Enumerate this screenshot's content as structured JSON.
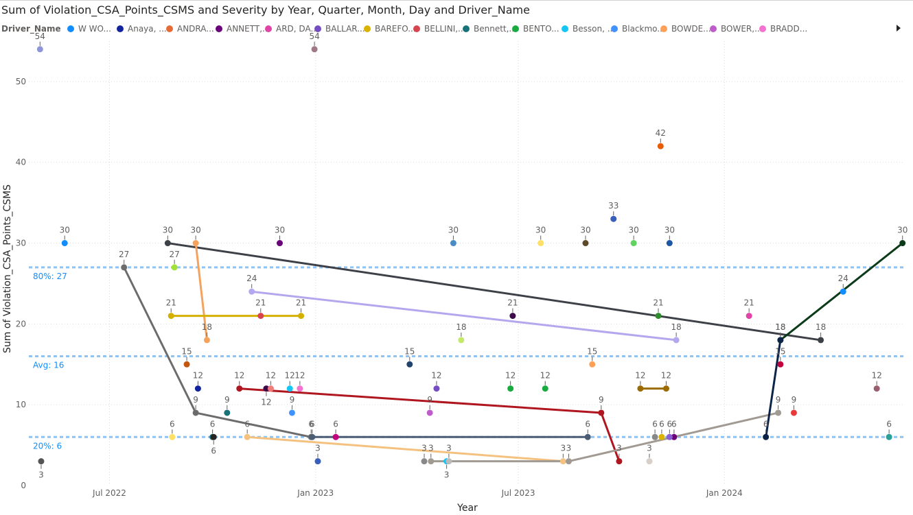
{
  "chart_data": {
    "type": "scatter",
    "title": "Sum of Violation_CSA_Points_CSMS and Severity by Year, Quarter, Month, Day and Driver_Name",
    "xlabel": "Year",
    "ylabel": "Sum of Violation_CSA_Points_CSMS",
    "x_range": [
      "2022-04-20",
      "2024-06-10"
    ],
    "ylim": [
      0,
      55
    ],
    "y_ticks": [
      0,
      10,
      20,
      30,
      40,
      50
    ],
    "x_ticks": [
      {
        "date": "2022-07-01",
        "label": "Jul 2022"
      },
      {
        "date": "2023-01-01",
        "label": "Jan 2023"
      },
      {
        "date": "2023-07-01",
        "label": "Jul 2023"
      },
      {
        "date": "2024-01-01",
        "label": "Jan 2024"
      }
    ],
    "grid": true,
    "legend": {
      "title": "Driver_Name",
      "placement": "top",
      "items": [
        {
          "name": "W WO...",
          "color": "#118dff"
        },
        {
          "name": "Anaya, ...",
          "color": "#12239e"
        },
        {
          "name": "ANDRA...",
          "color": "#e66c37"
        },
        {
          "name": "ANNETT,...",
          "color": "#6b007b"
        },
        {
          "name": "ARD, DA...",
          "color": "#e044a7"
        },
        {
          "name": "BALLAR...",
          "color": "#744ec2"
        },
        {
          "name": "BAREFO...",
          "color": "#d9b300"
        },
        {
          "name": "BELLINI,...",
          "color": "#d64550"
        },
        {
          "name": "Bennett,...",
          "color": "#197278"
        },
        {
          "name": "BENTO...",
          "color": "#1aab40"
        },
        {
          "name": "Besson, ...",
          "color": "#15c6f4"
        },
        {
          "name": "Blackmo...",
          "color": "#4092ff"
        },
        {
          "name": "BOWDE...",
          "color": "#ffa058"
        },
        {
          "name": "BOWER,...",
          "color": "#be5dc9"
        },
        {
          "name": "BRADD...",
          "color": "#f472d0"
        }
      ]
    },
    "reference_lines": [
      {
        "value": 27,
        "label": "80%: 27",
        "color": "#118dff"
      },
      {
        "value": 16,
        "label": "Avg: 16",
        "color": "#118dff"
      },
      {
        "value": 6,
        "label": "20%: 6",
        "color": "#118dff"
      }
    ],
    "series": [
      {
        "color": "#6c6c6c",
        "points": [
          {
            "x": "2022-07-14",
            "y": 27,
            "label": "27"
          },
          {
            "x": "2022-09-16",
            "y": 9,
            "label": "9"
          },
          {
            "x": "2022-12-28",
            "y": 6,
            "label": "6"
          }
        ]
      },
      {
        "color": "#3d4047",
        "points": [
          {
            "x": "2022-08-22",
            "y": 30,
            "label": "30"
          },
          {
            "x": "2024-03-27",
            "y": 18,
            "label": "18"
          }
        ]
      },
      {
        "color": "#f5a25d",
        "points": [
          {
            "x": "2022-09-16",
            "y": 30,
            "label": "30"
          },
          {
            "x": "2022-09-26",
            "y": 18,
            "label": "18"
          }
        ]
      },
      {
        "color": "#d4b000",
        "points": [
          {
            "x": "2022-08-25",
            "y": 21,
            "label": "21"
          },
          {
            "x": "2022-12-19",
            "y": 21,
            "label": "21"
          }
        ]
      },
      {
        "color": "#b5a7ee",
        "points": [
          {
            "x": "2022-11-05",
            "y": 24,
            "label": "24"
          },
          {
            "x": "2023-11-19",
            "y": 18,
            "label": "18"
          }
        ]
      },
      {
        "color": "#b0161f",
        "points": [
          {
            "x": "2022-10-25",
            "y": 12,
            "label": "12"
          },
          {
            "x": "2023-09-13",
            "y": 9,
            "label": "9"
          },
          {
            "x": "2023-09-29",
            "y": 3,
            "label": "3"
          }
        ]
      },
      {
        "color": "#4b5d75",
        "points": [
          {
            "x": "2022-12-29",
            "y": 6,
            "label": "6"
          },
          {
            "x": "2023-09-01",
            "y": 6,
            "label": "6"
          }
        ]
      },
      {
        "color": "#f4c17f",
        "points": [
          {
            "x": "2022-11-01",
            "y": 6,
            "label": "6"
          },
          {
            "x": "2023-08-10",
            "y": 3,
            "label": "3"
          }
        ]
      },
      {
        "color": "#a19a93",
        "points": [
          {
            "x": "2023-04-14",
            "y": 3,
            "label": "3"
          },
          {
            "x": "2023-08-15",
            "y": 3,
            "label": "3"
          },
          {
            "x": "2024-02-18",
            "y": 9,
            "label": "9"
          }
        ]
      },
      {
        "color": "#0b3b19",
        "points": [
          {
            "x": "2024-02-20",
            "y": 18,
            "label": "18"
          },
          {
            "x": "2024-06-08",
            "y": 30,
            "label": "30"
          }
        ]
      },
      {
        "color": "#0b2347",
        "points": [
          {
            "x": "2024-02-07",
            "y": 6,
            "label": "6"
          },
          {
            "x": "2024-02-20",
            "y": 18,
            "label": "18"
          }
        ]
      },
      {
        "color": "#9c6b00",
        "points": [
          {
            "x": "2023-10-18",
            "y": 12,
            "label": "12"
          },
          {
            "x": "2023-11-10",
            "y": 12,
            "label": "12"
          }
        ]
      }
    ],
    "points": [
      {
        "x": "2022-04-30",
        "y": 54,
        "label": "54",
        "color": "#8f96d8"
      },
      {
        "x": "2022-12-31",
        "y": 54,
        "label": "54",
        "color": "#a07986"
      },
      {
        "x": "2022-05-22",
        "y": 30,
        "label": "30",
        "color": "#118dff"
      },
      {
        "x": "2022-11-30",
        "y": 30,
        "label": "30",
        "color": "#6b007b"
      },
      {
        "x": "2023-05-04",
        "y": 30,
        "label": "30",
        "color": "#4a8bc4"
      },
      {
        "x": "2023-07-21",
        "y": 30,
        "label": "30",
        "color": "#ffe066"
      },
      {
        "x": "2023-08-30",
        "y": 30,
        "label": "30",
        "color": "#5c4a2b"
      },
      {
        "x": "2023-10-12",
        "y": 30,
        "label": "30",
        "color": "#5fd35f"
      },
      {
        "x": "2023-11-13",
        "y": 30,
        "label": "30",
        "color": "#1d56a4"
      },
      {
        "x": "2023-11-05",
        "y": 42,
        "label": "42",
        "color": "#e85d04"
      },
      {
        "x": "2023-09-24",
        "y": 33,
        "label": "33",
        "color": "#3a5fba"
      },
      {
        "x": "2022-08-28",
        "y": 27,
        "label": "27",
        "color": "#a2e03a"
      },
      {
        "x": "2022-11-13",
        "y": 21,
        "label": "21",
        "color": "#d64550"
      },
      {
        "x": "2023-06-26",
        "y": 21,
        "label": "21",
        "color": "#3d0a4a"
      },
      {
        "x": "2023-11-03",
        "y": 21,
        "label": "21",
        "color": "#2e8b2e"
      },
      {
        "x": "2024-01-23",
        "y": 21,
        "label": "21",
        "color": "#e044a7"
      },
      {
        "x": "2024-04-16",
        "y": 24,
        "label": "24",
        "color": "#118dff"
      },
      {
        "x": "2023-05-11",
        "y": 18,
        "label": "18",
        "color": "#c3e86b"
      },
      {
        "x": "2022-09-08",
        "y": 15,
        "label": "15",
        "color": "#c3570f"
      },
      {
        "x": "2023-03-26",
        "y": 15,
        "label": "15",
        "color": "#23426e"
      },
      {
        "x": "2023-09-05",
        "y": 15,
        "label": "15",
        "color": "#ffa058"
      },
      {
        "x": "2024-02-20",
        "y": 15,
        "label": "15",
        "color": "#c2003c"
      },
      {
        "x": "2022-09-18",
        "y": 12,
        "label": "12",
        "color": "#12239e"
      },
      {
        "x": "2022-11-18",
        "y": 12,
        "label": "12",
        "color": "#3d0a4a",
        "label_below": true
      },
      {
        "x": "2022-11-22",
        "y": 12,
        "label": "12",
        "color": "#f17c7c"
      },
      {
        "x": "2022-12-09",
        "y": 12,
        "label": "12",
        "color": "#15c6f4"
      },
      {
        "x": "2022-12-18",
        "y": 12,
        "label": "12",
        "color": "#f472d0"
      },
      {
        "x": "2023-04-19",
        "y": 12,
        "label": "12",
        "color": "#744ec2"
      },
      {
        "x": "2023-06-24",
        "y": 12,
        "label": "12",
        "color": "#1aab40"
      },
      {
        "x": "2023-07-25",
        "y": 12,
        "label": "12",
        "color": "#1aab40"
      },
      {
        "x": "2024-05-16",
        "y": 12,
        "label": "12",
        "color": "#9a5f6f"
      },
      {
        "x": "2022-10-14",
        "y": 9,
        "label": "9",
        "color": "#197278"
      },
      {
        "x": "2022-12-11",
        "y": 9,
        "label": "9",
        "color": "#4092ff"
      },
      {
        "x": "2023-04-13",
        "y": 9,
        "label": "9",
        "color": "#be5dc9"
      },
      {
        "x": "2024-03-03",
        "y": 9,
        "label": "9",
        "color": "#e83a3a"
      },
      {
        "x": "2022-08-26",
        "y": 6,
        "label": "6",
        "color": "#ffe066"
      },
      {
        "x": "2022-10-01",
        "y": 6,
        "label": "6",
        "color": "#197278"
      },
      {
        "x": "2022-10-02",
        "y": 6,
        "label": "6",
        "color": "#252423",
        "label_below": true
      },
      {
        "x": "2023-01-19",
        "y": 6,
        "label": "6",
        "color": "#c2007c"
      },
      {
        "x": "2023-10-31",
        "y": 6,
        "label": "6",
        "color": "#888888"
      },
      {
        "x": "2023-11-06",
        "y": 6,
        "label": "6",
        "color": "#d9b300"
      },
      {
        "x": "2023-11-17",
        "y": 6,
        "label": "6",
        "color": "#6b007b"
      },
      {
        "x": "2023-11-13",
        "y": 6,
        "label": "6",
        "color": "#8a5fd4"
      },
      {
        "x": "2024-05-27",
        "y": 6,
        "label": "6",
        "color": "#2aa198"
      },
      {
        "x": "2022-05-01",
        "y": 3,
        "label": "3",
        "color": "#555555",
        "label_below": true
      },
      {
        "x": "2023-01-03",
        "y": 3,
        "label": "3",
        "color": "#3a5fba"
      },
      {
        "x": "2023-04-08",
        "y": 3,
        "label": "3",
        "color": "#888888"
      },
      {
        "x": "2023-04-28",
        "y": 3,
        "label": "3",
        "color": "#15c6f4",
        "label_below": true
      },
      {
        "x": "2023-04-30",
        "y": 3,
        "label": "3",
        "color": "#bbbbbb"
      },
      {
        "x": "2023-10-26",
        "y": 3,
        "label": "3",
        "color": "#d8cfc8"
      }
    ]
  }
}
